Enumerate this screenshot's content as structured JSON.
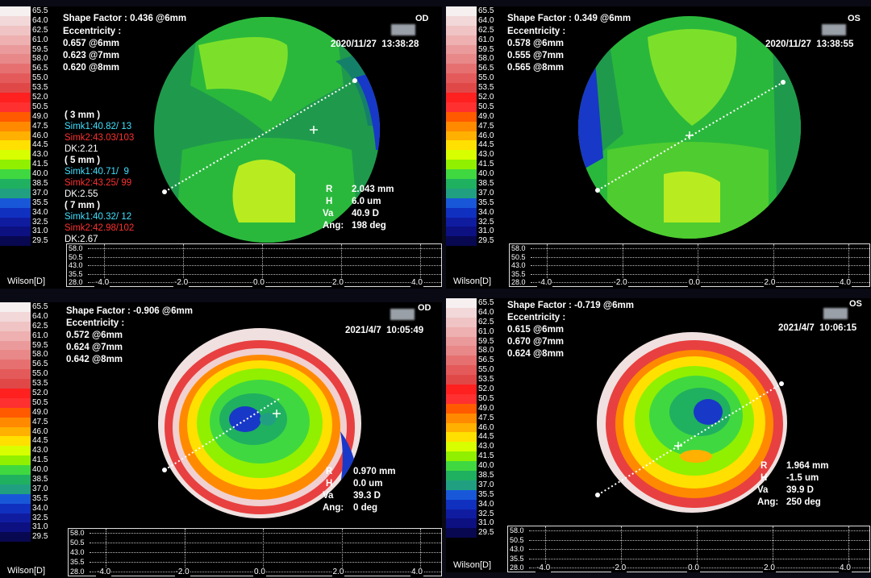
{
  "scale_values": [
    "65.5",
    "64.0",
    "62.5",
    "61.0",
    "59.5",
    "58.0",
    "56.5",
    "55.0",
    "53.5",
    "52.0",
    "50.5",
    "49.0",
    "47.5",
    "46.0",
    "44.5",
    "43.0",
    "41.5",
    "40.0",
    "38.5",
    "37.0",
    "35.5",
    "34.0",
    "32.5",
    "31.0",
    "29.5"
  ],
  "scale_colors": [
    "#f6f0f0",
    "#f2d8d8",
    "#f0c4c4",
    "#eeb0b0",
    "#ea9a9a",
    "#e88888",
    "#e67070",
    "#e45a5a",
    "#e04848",
    "#ff2020",
    "#ff3030",
    "#ff5a00",
    "#ff8a00",
    "#ffb000",
    "#ffe000",
    "#d8ff00",
    "#90f000",
    "#40d840",
    "#1fb060",
    "#20a080",
    "#1858d8",
    "#1030c0",
    "#101ca0",
    "#0c1080",
    "#080850"
  ],
  "legend_label": "Wilson[D]",
  "graph_y_labels": [
    "58.0",
    "50.5",
    "43.0",
    "35.5",
    "28.0"
  ],
  "graph_x_labels": [
    "-4.0",
    "-2.0",
    "0.0",
    "2.0",
    "4.0"
  ],
  "panels": [
    {
      "shape_factor": "Shape Factor : 0.436 @6mm",
      "eccentricity_title": "Eccentricity :",
      "ecc_values": [
        "0.657 @6mm",
        "0.623 @7mm",
        "0.620 @8mm"
      ],
      "eye": "OD",
      "datetime": "2020/11/27  13:38:28",
      "simk": [
        {
          "zone": "( 3 mm )",
          "simk1": "Simk1:40.82/ 13",
          "simk2": "Simk2:43.03/103",
          "dk": "DK:2.21"
        },
        {
          "zone": "( 5 mm )",
          "simk1": "Simk1:40.71/  9",
          "simk2": "Simk2:43.25/ 99",
          "dk": "DK:2.55"
        },
        {
          "zone": "( 7 mm )",
          "simk1": "Simk1:40.32/ 12",
          "simk2": "Simk2:42.98/102",
          "dk": "DK:2.67"
        }
      ],
      "cursor": {
        "r_label": "R",
        "r": "2.043 mm",
        "h_label": "H",
        "h": "6.0 um",
        "va_label": "Va",
        "va": "40.9 D",
        "ang_label": "Ang:",
        "ang": "198 deg"
      }
    },
    {
      "shape_factor": "Shape Factor : 0.349 @6mm",
      "eccentricity_title": "Eccentricity :",
      "ecc_values": [
        "0.578 @6mm",
        "0.555 @7mm",
        "0.565 @8mm"
      ],
      "eye": "OS",
      "datetime": "2020/11/27  13:38:55"
    },
    {
      "shape_factor": "Shape Factor : -0.906 @6mm",
      "eccentricity_title": "Eccentricity :",
      "ecc_values": [
        "0.572 @6mm",
        "0.624 @7mm",
        "0.642 @8mm"
      ],
      "eye": "OD",
      "datetime": "2021/4/7  10:05:49",
      "cursor": {
        "r_label": "R",
        "r": "0.970 mm",
        "h_label": "H",
        "h": "0.0 um",
        "va_label": "Va",
        "va": "39.3 D",
        "ang_label": "Ang:",
        "ang": "0 deg"
      }
    },
    {
      "shape_factor": "Shape Factor : -0.719 @6mm",
      "eccentricity_title": "Eccentricity :",
      "ecc_values": [
        "0.615 @6mm",
        "0.670 @7mm",
        "0.624 @8mm"
      ],
      "eye": "OS",
      "datetime": "2021/4/7  10:06:15",
      "cursor": {
        "r_label": "R",
        "r": "1.964 mm",
        "h_label": "H",
        "h": "-1.5 um",
        "va_label": "Va",
        "va": "39.9 D",
        "ang_label": "Ang:",
        "ang": "250 deg"
      }
    }
  ]
}
